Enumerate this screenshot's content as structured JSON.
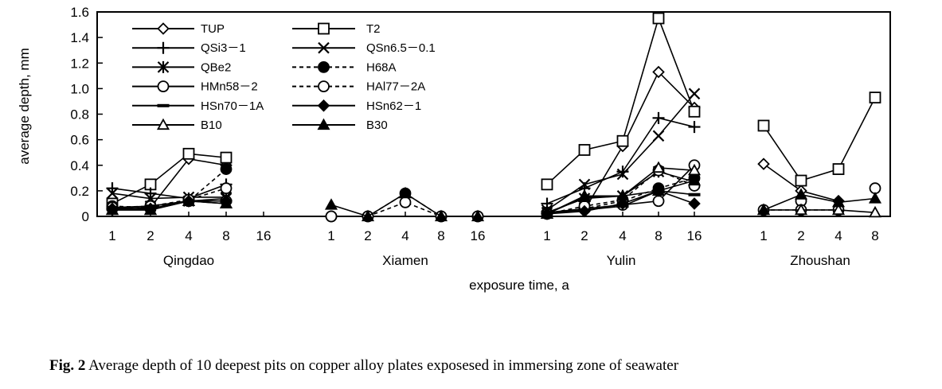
{
  "chart_data": {
    "type": "line",
    "xlabel": "exposure time, a",
    "ylabel": "average depth, mm",
    "ylim": [
      0,
      1.6
    ],
    "yticks": [
      "0",
      "0.2",
      "0.4",
      "0.6",
      "0.8",
      "1.0",
      "1.2",
      "1.4",
      "1.6"
    ],
    "grid": false,
    "legend_position": "top-left",
    "groups": [
      {
        "site": "Qingdao",
        "categories": [
          "1",
          "2",
          "4",
          "8",
          "16"
        ]
      },
      {
        "site": "Xiamen",
        "categories": [
          "1",
          "2",
          "4",
          "8",
          "16"
        ]
      },
      {
        "site": "Yulin",
        "categories": [
          "1",
          "2",
          "4",
          "8",
          "16"
        ]
      },
      {
        "site": "Zhoushan",
        "categories": [
          "1",
          "2",
          "4",
          "8"
        ]
      }
    ],
    "series": [
      {
        "name": "TUP",
        "marker": "diamond-open",
        "dash": "solid",
        "values": [
          [
            0.05,
            0.07,
            0.45,
            0.4,
            null
          ],
          [
            null,
            null,
            null,
            null,
            null
          ],
          [
            0.02,
            0.05,
            0.55,
            1.13,
            0.85
          ],
          [
            0.41,
            0.2,
            0.12,
            null
          ]
        ]
      },
      {
        "name": "T2",
        "marker": "square-open",
        "dash": "solid",
        "values": [
          [
            0.1,
            0.25,
            0.49,
            0.46,
            null
          ],
          [
            null,
            null,
            null,
            null,
            null
          ],
          [
            0.25,
            0.52,
            0.59,
            1.55,
            0.82
          ],
          [
            0.71,
            0.28,
            0.37,
            0.93
          ]
        ]
      },
      {
        "name": "QSi3－1",
        "marker": "plus",
        "dash": "solid",
        "values": [
          [
            0.22,
            0.18,
            0.14,
            0.25,
            null
          ],
          [
            null,
            null,
            null,
            null,
            null
          ],
          [
            0.1,
            0.22,
            0.35,
            0.77,
            0.7
          ],
          [
            null,
            null,
            null,
            null
          ]
        ]
      },
      {
        "name": "QSn6.5－0.1",
        "marker": "x",
        "dash": "solid",
        "values": [
          [
            0.18,
            0.14,
            0.15,
            0.15,
            null
          ],
          [
            null,
            null,
            null,
            null,
            null
          ],
          [
            0.05,
            0.25,
            0.33,
            0.63,
            0.96
          ],
          [
            null,
            null,
            null,
            null
          ]
        ]
      },
      {
        "name": "QBe2",
        "marker": "asterisk",
        "dash": "solid",
        "values": [
          [
            0.06,
            0.08,
            0.12,
            0.14,
            null
          ],
          [
            null,
            null,
            null,
            null,
            null
          ],
          [
            0.03,
            0.14,
            0.16,
            0.35,
            0.27
          ],
          [
            null,
            null,
            null,
            null
          ]
        ]
      },
      {
        "name": "H68A",
        "marker": "circle-filled",
        "dash": "dashed",
        "values": [
          [
            0.08,
            0.07,
            0.12,
            0.37,
            null
          ],
          [
            0.0,
            0.0,
            0.18,
            0.0,
            0.0
          ],
          [
            0.02,
            0.06,
            0.12,
            0.22,
            0.3
          ],
          [
            null,
            null,
            null,
            null
          ]
        ]
      },
      {
        "name": "HMn58－2",
        "marker": "circle-open",
        "dash": "solid",
        "values": [
          [
            0.06,
            0.06,
            0.12,
            0.12,
            null
          ],
          [
            null,
            null,
            null,
            null,
            null
          ],
          [
            0.03,
            0.06,
            0.09,
            0.12,
            0.4
          ],
          [
            null,
            0.12,
            null,
            0.22
          ]
        ]
      },
      {
        "name": "HAl77－2A",
        "marker": "circle-open",
        "dash": "dashed",
        "values": [
          [
            0.07,
            0.08,
            0.13,
            0.22,
            null
          ],
          [
            0.0,
            0.0,
            0.11,
            0.0,
            0.0
          ],
          [
            0.02,
            0.08,
            0.13,
            0.36,
            0.24
          ],
          [
            0.05,
            0.05,
            0.05,
            null
          ]
        ]
      },
      {
        "name": "HSn70－1A",
        "marker": "dash",
        "dash": "solid",
        "values": [
          [
            0.07,
            0.08,
            0.12,
            0.12,
            null
          ],
          [
            null,
            null,
            null,
            null,
            null
          ],
          [
            0.03,
            0.05,
            0.08,
            0.2,
            0.17
          ],
          [
            null,
            null,
            null,
            null
          ]
        ]
      },
      {
        "name": "HSn62－1",
        "marker": "diamond-filled",
        "dash": "solid",
        "values": [
          [
            0.06,
            0.06,
            0.12,
            0.12,
            null
          ],
          [
            null,
            null,
            null,
            null,
            null
          ],
          [
            0.02,
            0.04,
            0.1,
            0.2,
            0.1
          ],
          [
            null,
            null,
            0.12,
            null
          ]
        ]
      },
      {
        "name": "B10",
        "marker": "triangle-open",
        "dash": "solid",
        "values": [
          [
            0.05,
            0.05,
            0.12,
            0.1,
            null
          ],
          [
            null,
            null,
            null,
            null,
            null
          ],
          [
            0.02,
            0.16,
            0.16,
            0.38,
            0.36
          ],
          [
            0.05,
            0.05,
            0.05,
            0.03
          ]
        ]
      },
      {
        "name": "B30",
        "marker": "triangle-filled",
        "dash": "solid",
        "values": [
          [
            0.05,
            0.05,
            0.12,
            0.1,
            null
          ],
          [
            0.09,
            0.0,
            0.18,
            0.0,
            0.0
          ],
          [
            0.02,
            0.15,
            0.16,
            0.2,
            0.28
          ],
          [
            0.05,
            0.17,
            0.11,
            0.14
          ]
        ]
      }
    ]
  },
  "caption": {
    "label": "Fig. 2",
    "text": " Average depth of 10 deepest pits on copper alloy plates exposesed in immersing zone of seawater"
  }
}
